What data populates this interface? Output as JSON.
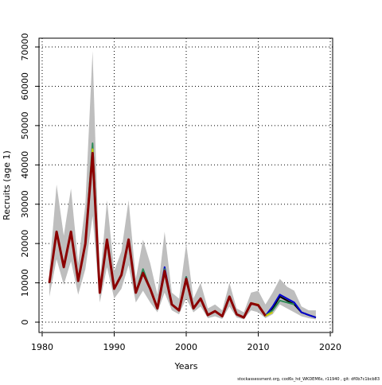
{
  "chart_data": {
    "type": "line",
    "x": [
      1981,
      1982,
      1983,
      1984,
      1985,
      1986,
      1987,
      1988,
      1989,
      1990,
      1991,
      1992,
      1993,
      1994,
      1995,
      1996,
      1997,
      1998,
      1999,
      2000,
      2001,
      2002,
      2003,
      2004,
      2005,
      2006,
      2007,
      2008,
      2009,
      2010,
      2011,
      2012,
      2013,
      2014,
      2015,
      2016,
      2017,
      2018
    ],
    "band": {
      "color": "#bebebe",
      "upper": [
        13000,
        35000,
        22000,
        34000,
        15000,
        30000,
        69000,
        10000,
        31000,
        13000,
        18000,
        31000,
        11000,
        21000,
        15000,
        7000,
        23000,
        7500,
        6000,
        20000,
        6000,
        10000,
        3500,
        4500,
        3000,
        10000,
        3500,
        2500,
        7500,
        8000,
        4500,
        7500,
        11000,
        9000,
        8000,
        4000,
        3000,
        3000
      ],
      "lower": [
        6500,
        16000,
        9500,
        15500,
        7000,
        13500,
        27000,
        5000,
        14000,
        6000,
        8500,
        14500,
        5000,
        8000,
        5000,
        2500,
        7500,
        3000,
        2000,
        6000,
        2500,
        4000,
        1000,
        1500,
        800,
        4000,
        1200,
        700,
        3000,
        2500,
        1000,
        2000,
        4500,
        3500,
        2500,
        1500,
        1000,
        700
      ]
    },
    "series": [
      {
        "color": "#000000",
        "values": [
          10000,
          23000,
          14000,
          23000,
          10500,
          20000,
          43000,
          7500,
          21000,
          8500,
          12000,
          21000,
          7500,
          12500,
          8500,
          3500,
          13000,
          4500,
          3000,
          11000,
          3500,
          6000,
          1800,
          2800,
          1500,
          6500,
          2000,
          1200,
          4800,
          4300,
          1600,
          3500,
          6500,
          5500,
          4500,
          2500,
          1800,
          1200
        ]
      },
      {
        "color": "#0000cd",
        "values": [
          10000,
          23000,
          14000,
          23000,
          10500,
          20000,
          44000,
          7500,
          21000,
          8500,
          12000,
          21000,
          7500,
          13000,
          8500,
          3500,
          14000,
          4500,
          3000,
          11500,
          3500,
          6000,
          1800,
          2800,
          1500,
          6500,
          2000,
          1200,
          4800,
          4300,
          1600,
          4000,
          7000,
          6000,
          5000,
          2500,
          1800,
          1200
        ]
      },
      {
        "color": "#2e8b57",
        "values": [
          10000,
          23000,
          14000,
          23000,
          10500,
          20000,
          45500,
          7500,
          21000,
          8500,
          12000,
          21000,
          7500,
          13500,
          8500,
          3500,
          13500,
          4500,
          3000,
          11500,
          3500,
          6000,
          1800,
          2800,
          1500,
          6500,
          2000,
          1200,
          4800,
          4300,
          1600,
          3000,
          5500,
          5000,
          4500,
          null,
          null,
          null
        ]
      },
      {
        "color": "#cdcd00",
        "values": [
          10000,
          23000,
          14000,
          23000,
          10500,
          20000,
          44000,
          7500,
          21000,
          8500,
          12000,
          21000,
          7500,
          12500,
          8500,
          3500,
          13000,
          4500,
          3000,
          11000,
          3500,
          6000,
          1800,
          2800,
          1500,
          6500,
          2000,
          1200,
          4800,
          4500,
          1600,
          2500,
          null,
          null,
          null,
          null,
          null,
          null
        ]
      },
      {
        "color": "#8b0000",
        "values": [
          10000,
          23000,
          14000,
          23000,
          10500,
          20000,
          43000,
          7500,
          21000,
          8500,
          12000,
          21000,
          7500,
          12500,
          8500,
          3500,
          13000,
          4500,
          3000,
          11000,
          3500,
          6000,
          1800,
          2800,
          1500,
          6500,
          2000,
          1200,
          4800,
          4300,
          1600,
          null,
          null,
          null,
          null,
          null,
          null,
          null
        ]
      }
    ],
    "xlabel": "Years",
    "ylabel": "Recruits (age 1)",
    "footer": "stockassessment.org, cod6s_hd_WKDEM6s, r11940 , git: df0b7c1bcb83",
    "xlim": [
      1979.56,
      2020.33
    ],
    "xticks": [
      1980,
      1990,
      2000,
      2010,
      2020
    ],
    "ylim": [
      -2630,
      72230
    ],
    "yticks": [
      0,
      10000,
      20000,
      30000,
      40000,
      50000,
      60000,
      70000
    ],
    "grid": true
  }
}
